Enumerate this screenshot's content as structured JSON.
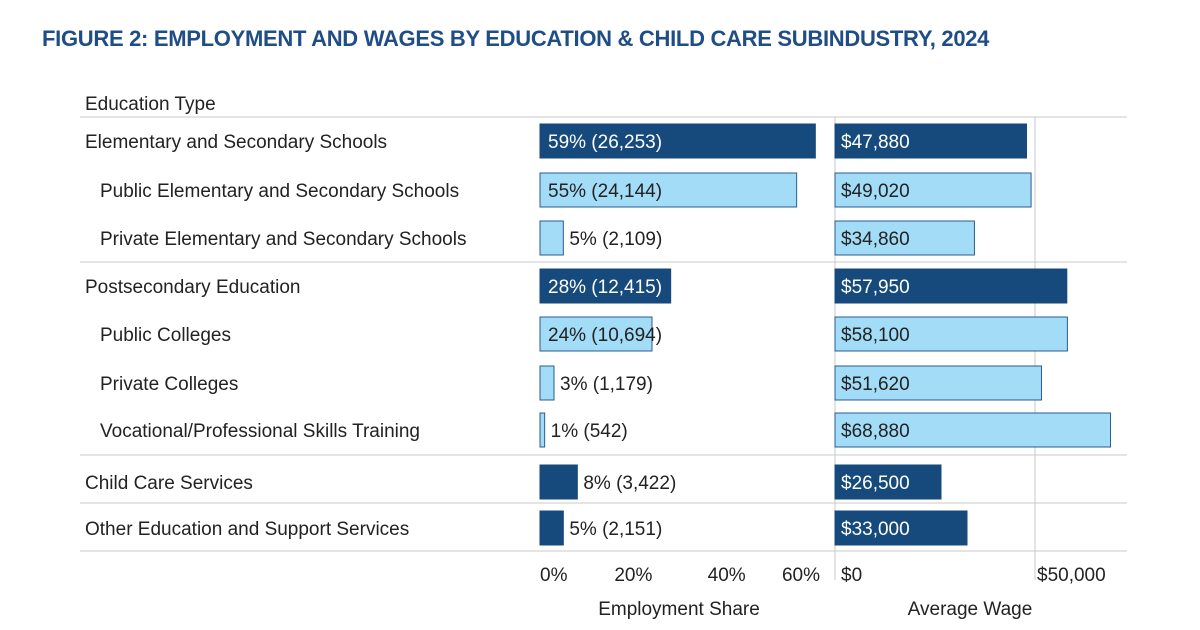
{
  "title": "FIGURE 2: EMPLOYMENT AND WAGES BY EDUCATION & CHILD CARE SUBINDUSTRY, 2024",
  "colors": {
    "group_bar": "#164a7c",
    "sub_bar": "#a3dcf7",
    "sub_bar_border": "#2a5d8f",
    "grid": "#c8c8c8",
    "text": "#222222",
    "title": "#1f4d85"
  },
  "chart_data": {
    "type": "bar",
    "orientation": "horizontal",
    "row_header": "Education Type",
    "categories": [
      "Elementary and Secondary Schools",
      "Public Elementary and Secondary Schools",
      "Private Elementary and Secondary Schools",
      "Postsecondary Education",
      "Public Colleges",
      "Private Colleges",
      "Vocational/Professional Skills Training",
      "Child Care Services",
      "Other Education and Support Services"
    ],
    "levels": [
      "group",
      "sub",
      "sub",
      "group",
      "sub",
      "sub",
      "sub",
      "group",
      "group"
    ],
    "panels": [
      {
        "name": "Employment Share",
        "xlabel": "Employment Share",
        "xlim": [
          0,
          60
        ],
        "ticks": [
          0,
          20,
          40,
          60
        ],
        "tick_labels": [
          "0%",
          "20%",
          "40%",
          "60%"
        ],
        "values": [
          59,
          55,
          5,
          28,
          24,
          3,
          1,
          8,
          5
        ],
        "counts": [
          "26,253",
          "24,144",
          "2,109",
          "12,415",
          "10,694",
          "1,179",
          "542",
          "3,422",
          "2,151"
        ],
        "labels": [
          "59% (26,253)",
          "55% (24,144)",
          "5% (2,109)",
          "28% (12,415)",
          "24% (10,694)",
          "3% (1,179)",
          "1% (542)",
          "8% (3,422)",
          "5% (2,151)"
        ]
      },
      {
        "name": "Average Wage",
        "xlabel": "Average Wage",
        "xlim": [
          0,
          68880
        ],
        "ticks": [
          0,
          50000
        ],
        "tick_labels": [
          "$0",
          "$50,000"
        ],
        "values": [
          47880,
          49020,
          34860,
          57950,
          58100,
          51620,
          68880,
          26500,
          33000
        ],
        "labels": [
          "$47,880",
          "$49,020",
          "$34,860",
          "$57,950",
          "$58,100",
          "$51,620",
          "$68,880",
          "$26,500",
          "$33,000"
        ]
      }
    ]
  }
}
